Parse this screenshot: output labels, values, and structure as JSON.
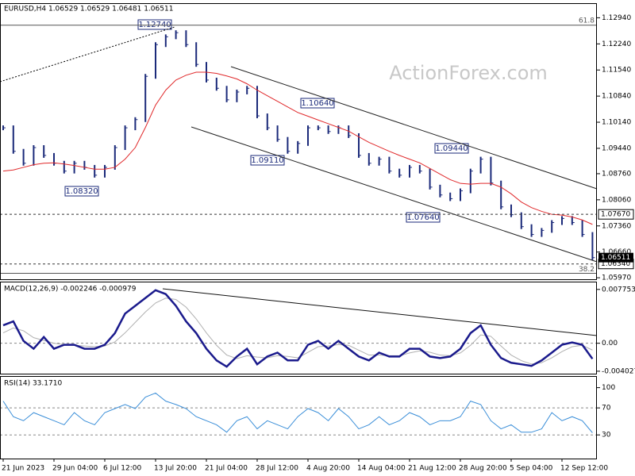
{
  "chart_data": [
    {
      "type": "price",
      "title": "EURUSD,H4  1.06529 1.06529 1.06481 1.06511",
      "watermark": "ActionForex.com",
      "ylim": [
        1.0593,
        1.1331
      ],
      "yticks": [
        {
          "value": 1.1294,
          "label": "1.12940"
        },
        {
          "value": 1.1224,
          "label": "1.12240"
        },
        {
          "value": 1.1154,
          "label": "1.11540"
        },
        {
          "value": 1.1084,
          "label": "1.10840"
        },
        {
          "value": 1.1014,
          "label": "1.10140"
        },
        {
          "value": 1.0944,
          "label": "1.09440"
        },
        {
          "value": 1.0876,
          "label": "1.08760"
        },
        {
          "value": 1.0806,
          "label": "1.08060"
        },
        {
          "value": 1.0736,
          "label": "1.07360"
        },
        {
          "value": 1.0666,
          "label": "1.06660"
        },
        {
          "value": 1.0597,
          "label": "1.05970"
        }
      ],
      "series": [
        {
          "name": "EURUSD",
          "color": "#1b2a7a",
          "values": [
            1.0999,
            1.0936,
            1.0904,
            1.0946,
            1.0925,
            1.0904,
            1.0883,
            1.0904,
            1.0893,
            1.0872,
            1.0893,
            1.0946,
            1.0999,
            1.1021,
            1.1137,
            1.1222,
            1.1243,
            1.1254,
            1.1222,
            1.1169,
            1.1127,
            1.1105,
            1.1074,
            1.1095,
            1.1105,
            1.1031,
            1.0999,
            1.0968,
            1.0936,
            1.0957,
            1.0999,
            1.0999,
            1.0989,
            1.0999,
            1.0978,
            1.0925,
            1.0904,
            1.0915,
            1.0883,
            1.0872,
            1.0893,
            1.0883,
            1.084,
            1.0819,
            1.0809,
            1.083,
            1.0883,
            1.0915,
            1.0851,
            1.0787,
            1.0766,
            1.0734,
            1.0713,
            1.0724,
            1.0745,
            1.0756,
            1.0745,
            1.0713,
            1.0651
          ]
        },
        {
          "name": "MA",
          "color": "#e0292b",
          "values": [
            1.0883,
            1.0886,
            1.0893,
            1.09,
            1.0904,
            1.0905,
            1.0902,
            1.0898,
            1.0893,
            1.0888,
            1.0888,
            1.0893,
            1.0915,
            1.0946,
            1.1,
            1.106,
            1.11,
            1.1127,
            1.114,
            1.1148,
            1.1148,
            1.1145,
            1.1138,
            1.113,
            1.1117,
            1.11,
            1.1085,
            1.107,
            1.1055,
            1.104,
            1.103,
            1.102,
            1.101,
            1.1,
            1.099,
            1.0975,
            1.096,
            1.0948,
            1.0936,
            1.0925,
            1.0915,
            1.0905,
            1.089,
            1.0875,
            1.086,
            1.085,
            1.0848,
            1.085,
            1.085,
            1.084,
            1.0822,
            1.08,
            1.0785,
            1.0775,
            1.0767,
            1.0765,
            1.076,
            1.0752,
            1.074
          ]
        }
      ],
      "annotations": [
        "1.12740",
        "1.08320",
        "1.09110",
        "1.10640",
        "1.07640",
        "1.09440"
      ],
      "levels": [
        {
          "value": 1.0767,
          "label": "1.07670"
        },
        {
          "value": 1.0634,
          "label": "1.06340"
        }
      ],
      "last_price": {
        "value": 1.06511,
        "label": "1.06511"
      },
      "fib": [
        {
          "value": 1.1274,
          "label": "61.8"
        },
        {
          "value": 1.0609,
          "label": "38.2"
        }
      ]
    },
    {
      "type": "line",
      "title": "MACD(12,26,9) -0.002246 -0.000979",
      "ylim": [
        -0.00438,
        0.00876
      ],
      "yticks": [
        0.007753,
        {
          "value": 0,
          "label": "0.00"
        },
        -0.004027
      ],
      "series": [
        {
          "name": "MACD",
          "color": "#1a1a8c",
          "values": [
            0.00258,
            0.00315,
            0.00034,
            -0.00079,
            0.0009,
            -0.00079,
            -0.00022,
            -0.00022,
            -0.00079,
            -0.00079,
            -0.00022,
            0.00146,
            0.00427,
            0.00539,
            0.00652,
            0.00764,
            0.00708,
            0.00539,
            0.00315,
            0.00146,
            -0.00079,
            -0.00247,
            -0.00337,
            -0.00191,
            -0.00079,
            -0.00303,
            -0.00191,
            -0.00135,
            -0.00247,
            -0.00247,
            -0.00022,
            0.00034,
            -0.00079,
            0.00034,
            -0.00079,
            -0.00191,
            -0.00247,
            -0.00135,
            -0.00191,
            -0.00191,
            -0.00079,
            -0.00079,
            -0.00191,
            -0.00213,
            -0.00191,
            -0.00079,
            0.00146,
            0.00258,
            -0.00022,
            -0.00213,
            -0.00281,
            -0.00303,
            -0.00326,
            -0.00247,
            -0.00135,
            -0.00022,
            0.00011,
            -0.00022,
            -0.002246
          ]
        },
        {
          "name": "Signal",
          "color": "#b0b0b0",
          "values": [
            0.0015,
            0.0022,
            0.0018,
            0.0008,
            0.0004,
            0.0,
            -0.0002,
            -0.0003,
            -0.0004,
            -0.0005,
            -0.0004,
            0.0002,
            0.0015,
            0.003,
            0.0045,
            0.0058,
            0.0065,
            0.0063,
            0.0052,
            0.0035,
            0.0015,
            -0.0003,
            -0.0017,
            -0.0022,
            -0.0018,
            -0.002,
            -0.0021,
            -0.0018,
            -0.0019,
            -0.0021,
            -0.0013,
            -0.0005,
            -0.0004,
            -0.0002,
            -0.0003,
            -0.001,
            -0.0017,
            -0.0017,
            -0.0018,
            -0.0018,
            -0.0014,
            -0.0011,
            -0.0013,
            -0.0017,
            -0.0018,
            -0.0014,
            -0.0003,
            0.0012,
            0.001,
            -0.0004,
            -0.0017,
            -0.0025,
            -0.003,
            -0.0028,
            -0.0021,
            -0.0012,
            -0.0005,
            -0.0003,
            -0.000979
          ]
        }
      ]
    },
    {
      "type": "line",
      "title": "RSI(14) 33.1710",
      "ylim": [
        -5,
        116
      ],
      "yticks": [
        100,
        70,
        30
      ],
      "categories": [
        "21 Jun 2023",
        null,
        null,
        null,
        null,
        "29 Jun 04:00",
        null,
        null,
        null,
        null,
        "6 Jul 12:00",
        null,
        null,
        null,
        null,
        "13 Jul 20:00",
        null,
        null,
        null,
        null,
        "21 Jul 04:00",
        null,
        null,
        null,
        null,
        "28 Jul 12:00",
        null,
        null,
        null,
        null,
        "4 Aug 20:00",
        null,
        null,
        null,
        null,
        "14 Aug 04:00",
        null,
        null,
        null,
        null,
        "21 Aug 12:00",
        null,
        null,
        null,
        null,
        "28 Aug 20:00",
        null,
        null,
        null,
        null,
        "5 Sep 04:00",
        null,
        null,
        null,
        null,
        "12 Sep 12:00",
        null,
        null,
        null
      ],
      "series": [
        {
          "name": "RSI",
          "color": "#3a8ed8",
          "values": [
            80,
            57,
            51,
            63,
            57,
            51,
            45,
            63,
            51,
            45,
            63,
            69,
            75,
            69,
            86,
            92,
            80,
            75,
            69,
            57,
            51,
            45,
            34,
            51,
            57,
            39,
            51,
            45,
            39,
            57,
            69,
            63,
            51,
            69,
            57,
            39,
            45,
            57,
            45,
            51,
            63,
            57,
            45,
            51,
            51,
            57,
            80,
            75,
            51,
            39,
            45,
            34,
            34,
            39,
            63,
            51,
            57,
            51,
            33.171
          ]
        }
      ]
    }
  ]
}
